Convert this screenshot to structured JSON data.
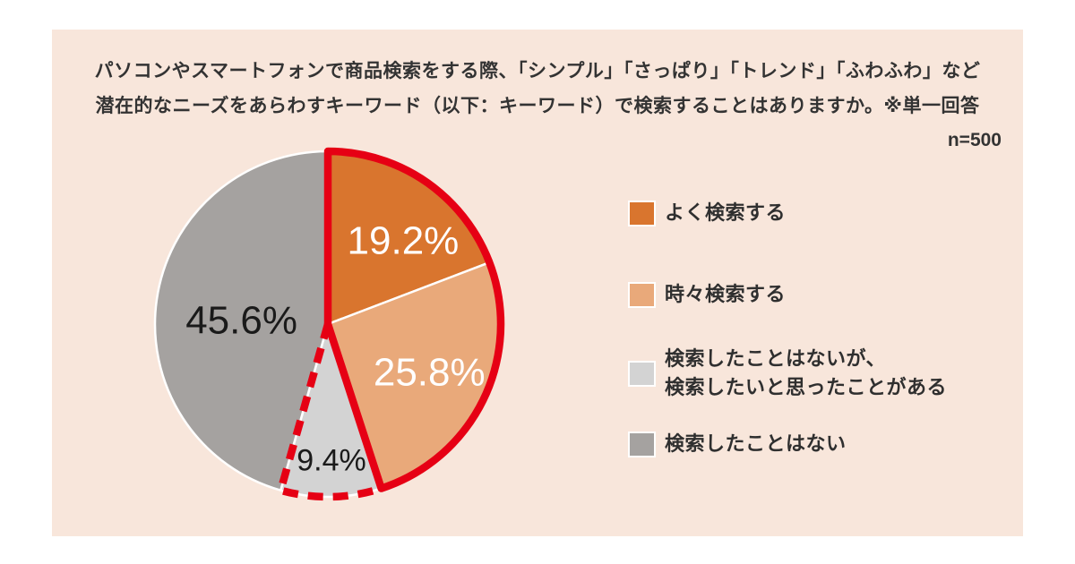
{
  "title": {
    "line1": "パソコンやスマートフォンで商品検索をする際、「シンプル」「さっぱり」「トレンド」「ふわふわ」など",
    "line2": "潜在的なニーズをあらわすキーワード（以下：キーワード）で検索することはありますか。※単一回答"
  },
  "sample_size": "n=500",
  "chart_data": {
    "type": "pie",
    "title": "パソコンやスマートフォンで商品検索をする際、潜在的なニーズをあらわすキーワードで検索することはありますか。※単一回答",
    "sample_size": "n=500",
    "categories": [
      "よく検索する",
      "時々検索する",
      "検索したことはないが、検索したいと思ったことがある",
      "検索したことはない"
    ],
    "values": [
      19.2,
      25.8,
      9.4,
      45.6
    ],
    "unit": "%",
    "labels": [
      "19.2%",
      "25.8%",
      "9.4%",
      "45.6%"
    ],
    "colors": [
      "#d9752e",
      "#e9a97a",
      "#d3d3d3",
      "#a5a2a0"
    ],
    "label_colors": [
      "#ffffff",
      "#ffffff",
      "#1a1a1a",
      "#1a1a1a"
    ],
    "start_angle_deg": 0,
    "direction": "clockwise",
    "legend_position": "right",
    "highlight": {
      "solid_outline_slices": [
        0,
        1
      ],
      "dashed_outline_slices": [
        2
      ],
      "outline_color": "#e60014"
    }
  },
  "legend": {
    "items": [
      {
        "lines": [
          "よく検索する"
        ],
        "color": "#d9752e"
      },
      {
        "lines": [
          "時々検索する"
        ],
        "color": "#e9a97a"
      },
      {
        "lines": [
          "検索したことはないが、",
          "検索したいと思ったことがある"
        ],
        "color": "#d3d3d3"
      },
      {
        "lines": [
          "検索したことはない"
        ],
        "color": "#a5a2a0"
      }
    ]
  },
  "colors": {
    "panel_background": "#f8e6db",
    "page_background": "#ffffff",
    "highlight_red": "#e60014",
    "slice_border": "#ffffff",
    "text": "#333333"
  }
}
